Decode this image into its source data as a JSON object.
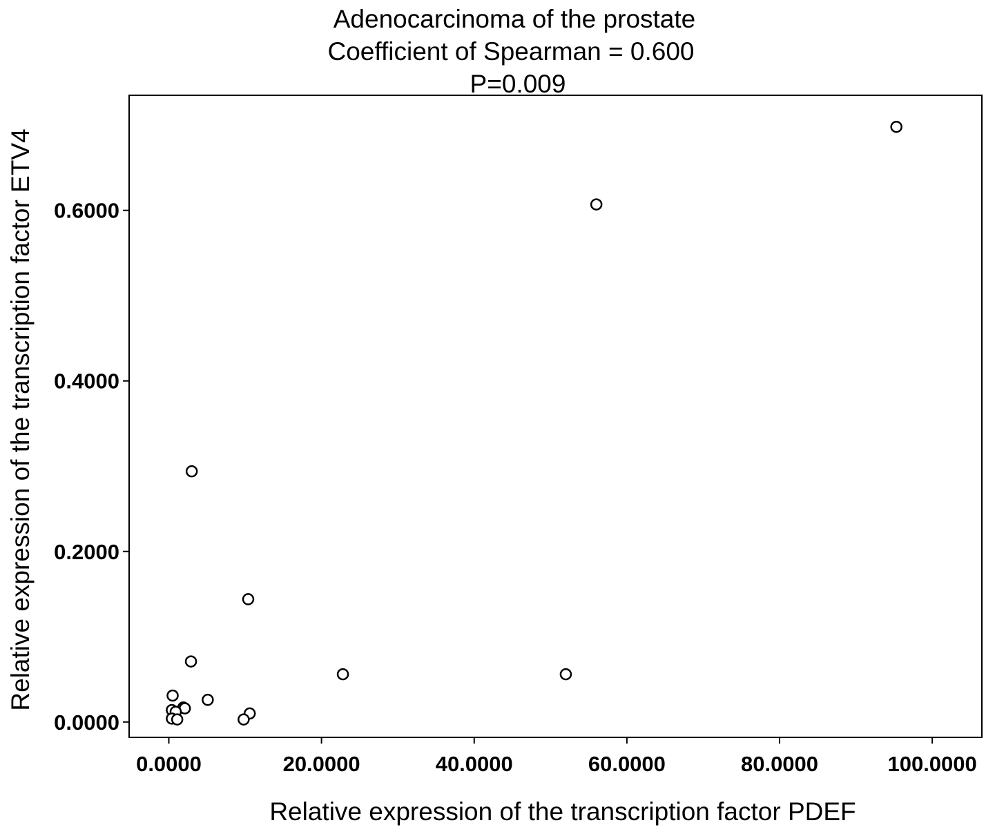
{
  "chart_data": {
    "type": "scatter",
    "title": [
      "Adenocarcinoma of the prostate",
      "Coefficient of Spearman = 0.600",
      "P=0.009"
    ],
    "xlabel": "Relative expression of the transcription factor PDEF",
    "ylabel": "Relative expression of the transcription factor ETV4",
    "xlim": [
      -5.2,
      106.5
    ],
    "ylim": [
      -0.018,
      0.735
    ],
    "xticks": [
      0,
      20,
      40,
      60,
      80,
      100
    ],
    "xtick_labels": [
      "0.0000",
      "20.0000",
      "40.0000",
      "60.0000",
      "80.0000",
      "100.0000"
    ],
    "yticks": [
      0,
      0.2,
      0.4,
      0.6
    ],
    "ytick_labels": [
      "0.0000",
      "0.2000",
      "0.4000",
      "0.6000"
    ],
    "grid": false,
    "points": [
      {
        "x": 95.3,
        "y": 0.698
      },
      {
        "x": 56.0,
        "y": 0.607
      },
      {
        "x": 3.0,
        "y": 0.294
      },
      {
        "x": 10.4,
        "y": 0.144
      },
      {
        "x": 2.9,
        "y": 0.071
      },
      {
        "x": 22.8,
        "y": 0.056
      },
      {
        "x": 52.0,
        "y": 0.056
      },
      {
        "x": 0.5,
        "y": 0.031
      },
      {
        "x": 5.1,
        "y": 0.026
      },
      {
        "x": 1.9,
        "y": 0.017
      },
      {
        "x": 2.1,
        "y": 0.016
      },
      {
        "x": 0.4,
        "y": 0.014
      },
      {
        "x": 0.9,
        "y": 0.012
      },
      {
        "x": 10.6,
        "y": 0.01
      },
      {
        "x": 0.4,
        "y": 0.004
      },
      {
        "x": 1.1,
        "y": 0.003
      },
      {
        "x": 9.8,
        "y": 0.003
      }
    ]
  }
}
